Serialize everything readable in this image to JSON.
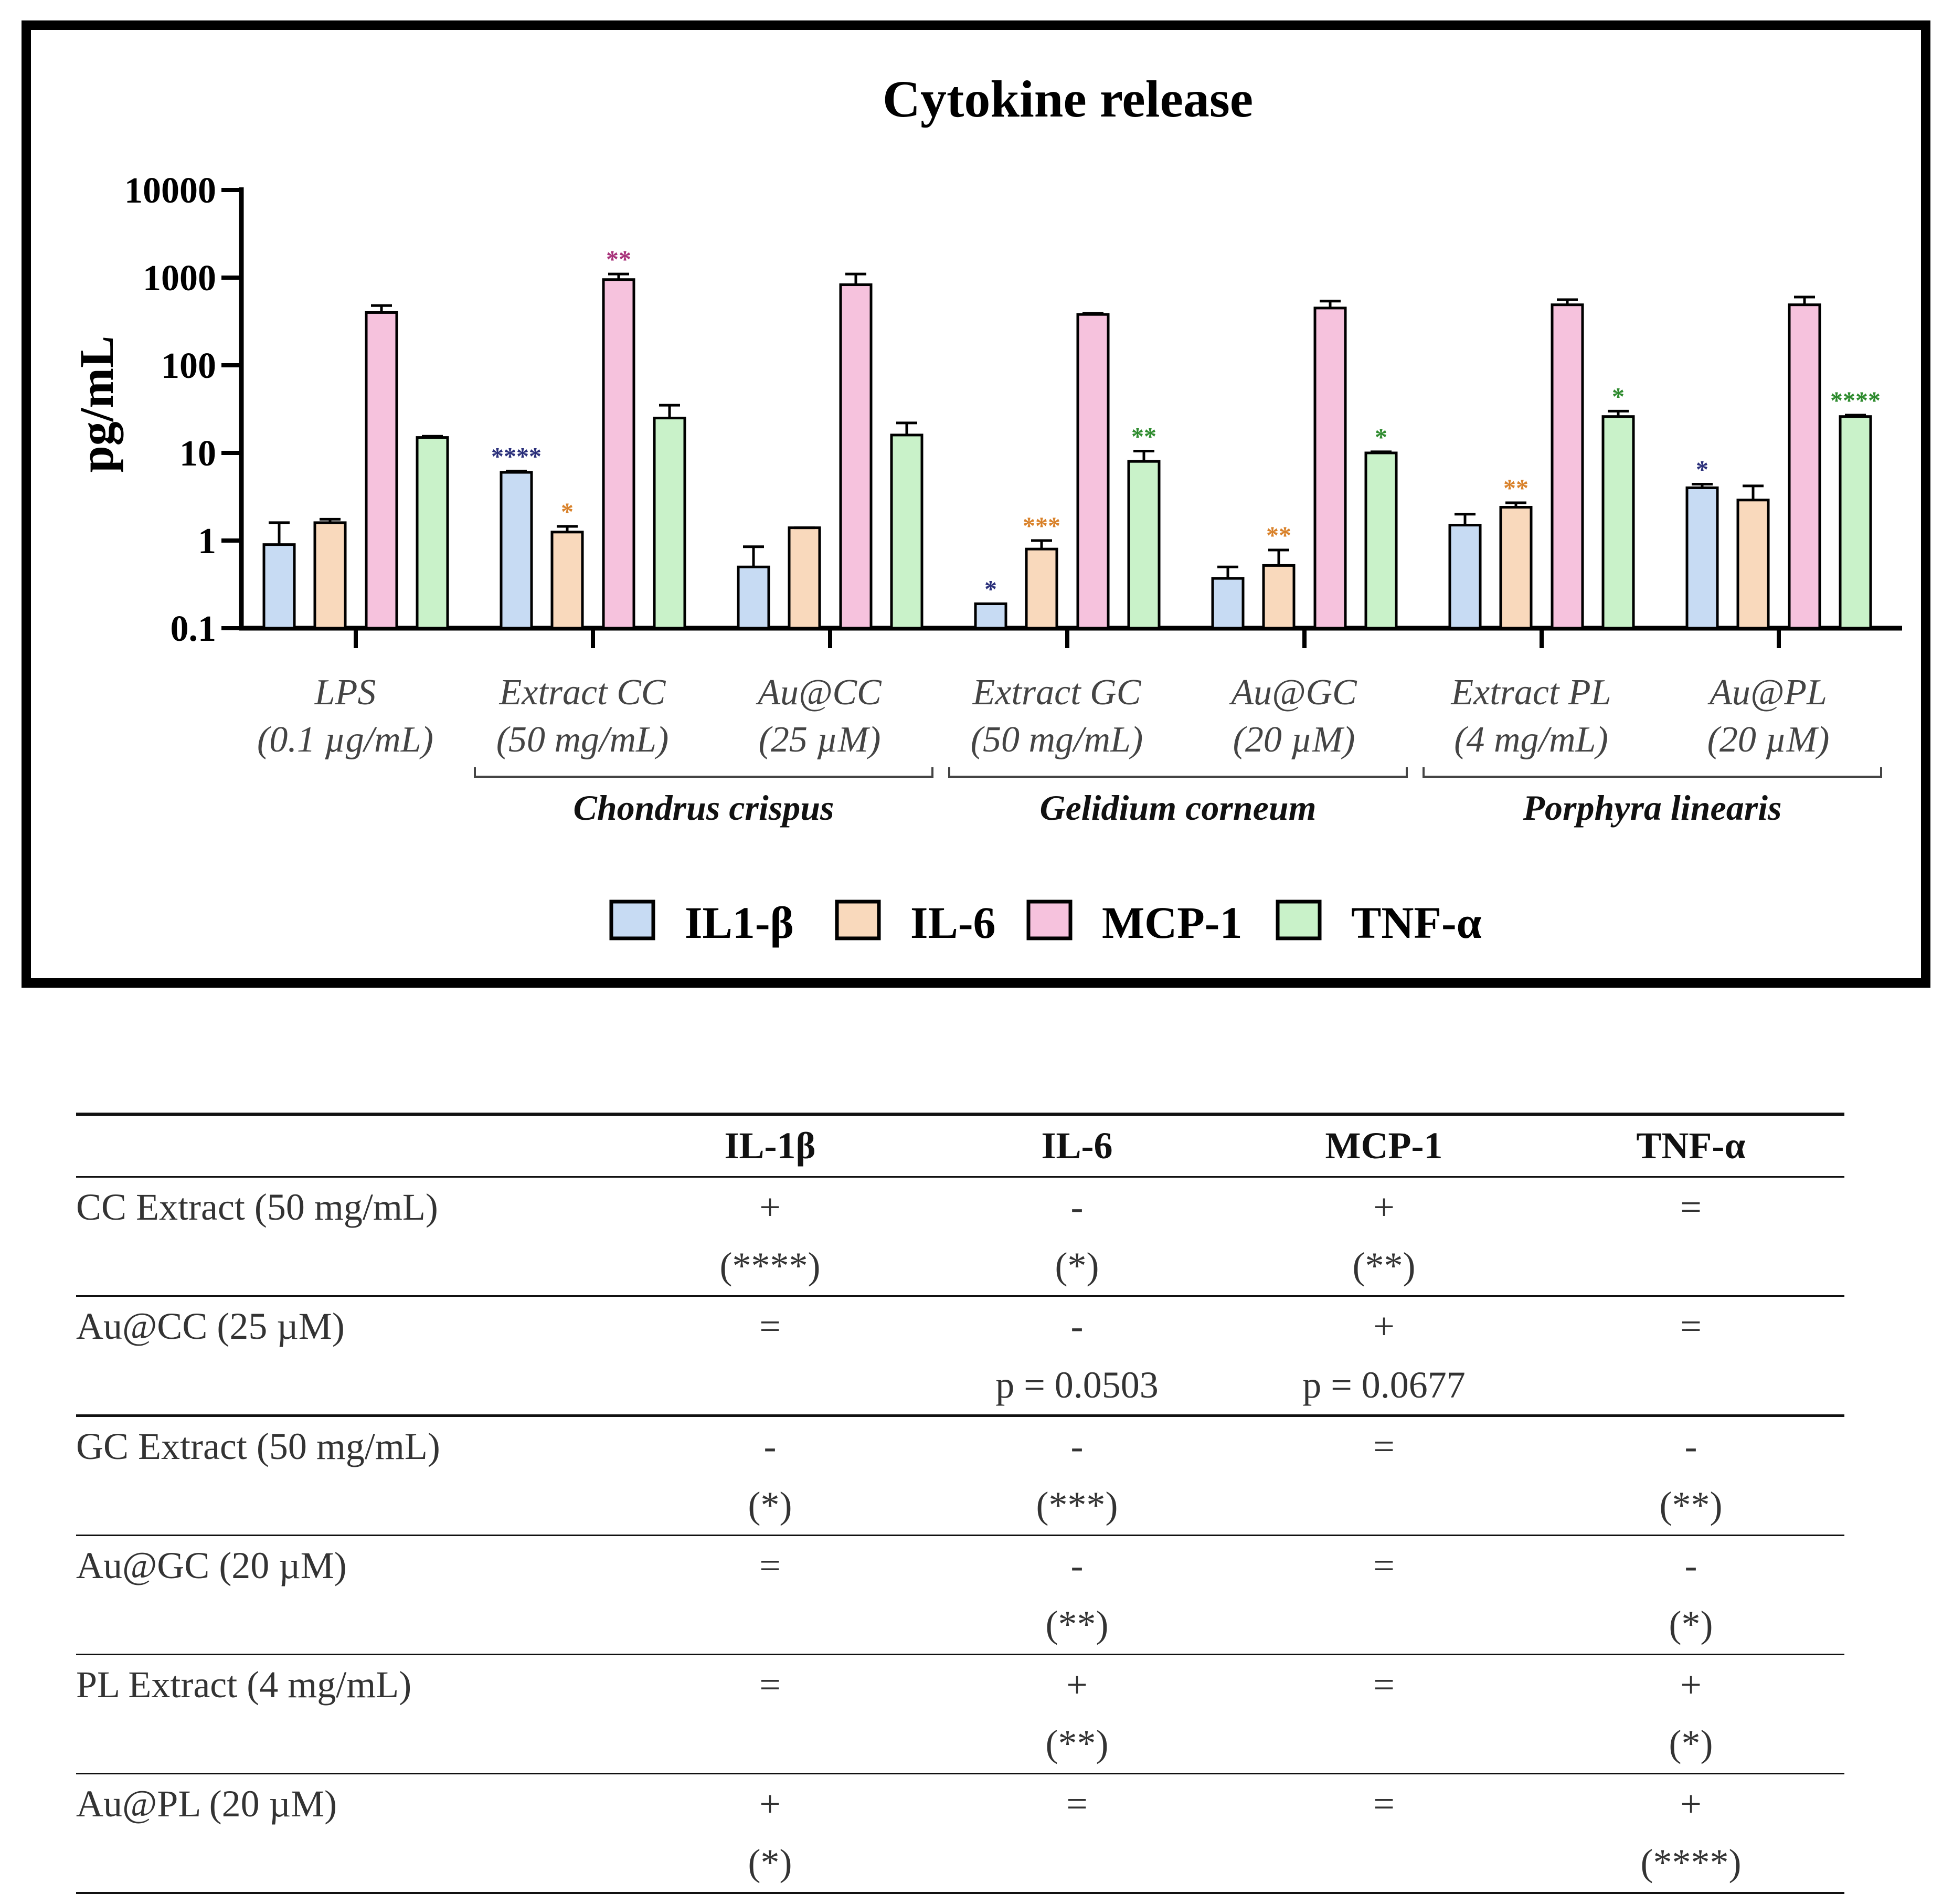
{
  "chart_data": {
    "type": "bar",
    "scale": "log",
    "title": "Cytokine release",
    "ylabel": "pg/mL",
    "ylim": [
      0.1,
      10000
    ],
    "yticks": [
      "0.1",
      "1",
      "10",
      "100",
      "1000",
      "10000"
    ],
    "categories": [
      {
        "line1": "LPS",
        "line2": "(0.1 µg/mL)"
      },
      {
        "line1": "Extract CC",
        "line2": "(50 mg/mL)"
      },
      {
        "line1": "Au@CC",
        "line2": "(25 µM)"
      },
      {
        "line1": "Extract GC",
        "line2": "(50 mg/mL)"
      },
      {
        "line1": "Au@GC",
        "line2": "(20 µM)"
      },
      {
        "line1": "Extract PL",
        "line2": "(4 mg/mL)"
      },
      {
        "line1": "Au@PL",
        "line2": "(20 µM)"
      }
    ],
    "groups": [
      {
        "label": "Chondrus crispus",
        "from": 1,
        "to": 2
      },
      {
        "label": "Gelidium corneum",
        "from": 3,
        "to": 4
      },
      {
        "label": "Porphyra linearis",
        "from": 5,
        "to": 6
      }
    ],
    "series": [
      {
        "name": "IL1-β",
        "color": "#c7dbf3",
        "sigColor": "#2a2f7a",
        "values": [
          0.9,
          6.0,
          0.5,
          0.19,
          0.37,
          1.5,
          4.0
        ],
        "errors": [
          1.6,
          6.2,
          0.85,
          0.19,
          0.5,
          2.0,
          4.4
        ],
        "sig": [
          "",
          "****",
          "",
          "*",
          "",
          "",
          "*"
        ]
      },
      {
        "name": "IL-6",
        "color": "#f9d9bc",
        "sigColor": "#d9822b",
        "values": [
          1.6,
          1.25,
          1.4,
          0.8,
          0.52,
          2.4,
          2.9
        ],
        "errors": [
          1.75,
          1.45,
          1.4,
          1.0,
          0.78,
          2.7,
          4.2
        ],
        "sig": [
          "",
          "*",
          "",
          "***",
          "**",
          "**",
          ""
        ]
      },
      {
        "name": "MCP-1",
        "color": "#f6c2dd",
        "sigColor": "#a8327a",
        "values": [
          400,
          950,
          830,
          380,
          450,
          490,
          490
        ],
        "errors": [
          480,
          1100,
          1100,
          390,
          540,
          560,
          600
        ],
        "sig": [
          "",
          "**",
          "",
          "",
          "",
          "",
          ""
        ]
      },
      {
        "name": "TNF-α",
        "color": "#c9f2c9",
        "sigColor": "#2e8b2e",
        "values": [
          15,
          25,
          16,
          8,
          10,
          26,
          26
        ],
        "errors": [
          15.5,
          35,
          22,
          10.5,
          10.3,
          30,
          27
        ],
        "sig": [
          "",
          "",
          "",
          "**",
          "*",
          "*",
          "****"
        ]
      }
    ]
  },
  "table": {
    "headers": [
      "",
      "IL-1β",
      "IL-6",
      "MCP-1",
      "TNF-α"
    ],
    "rows": [
      {
        "label": "CC Extract (50 mg/mL)",
        "sym": [
          "+",
          "-",
          "+",
          "="
        ],
        "note": [
          "(****)",
          "(*)",
          "(**)",
          ""
        ],
        "thick": false
      },
      {
        "label": "Au@CC (25 µM)",
        "sym": [
          "=",
          "-",
          "+",
          "="
        ],
        "note": [
          "",
          "p = 0.0503",
          "p = 0.0677",
          ""
        ],
        "thick": true
      },
      {
        "label": "GC Extract (50 mg/mL)",
        "sym": [
          "-",
          "-",
          "=",
          "-"
        ],
        "note": [
          "(*)",
          "(***)",
          "",
          "(**)"
        ],
        "thick": false
      },
      {
        "label": "Au@GC (20 µM)",
        "sym": [
          "=",
          "-",
          "=",
          "-"
        ],
        "note": [
          "",
          "(**)",
          "",
          "(*)"
        ],
        "thick": false
      },
      {
        "label": "PL Extract (4 mg/mL)",
        "sym": [
          "=",
          "+",
          "=",
          "+"
        ],
        "note": [
          "",
          "(**)",
          "",
          "(*)"
        ],
        "thick": false
      },
      {
        "label": "Au@PL (20 µM)",
        "sym": [
          "+",
          "=",
          "=",
          "+"
        ],
        "note": [
          "(*)",
          "",
          "",
          "(****)"
        ],
        "thick": false
      }
    ]
  }
}
